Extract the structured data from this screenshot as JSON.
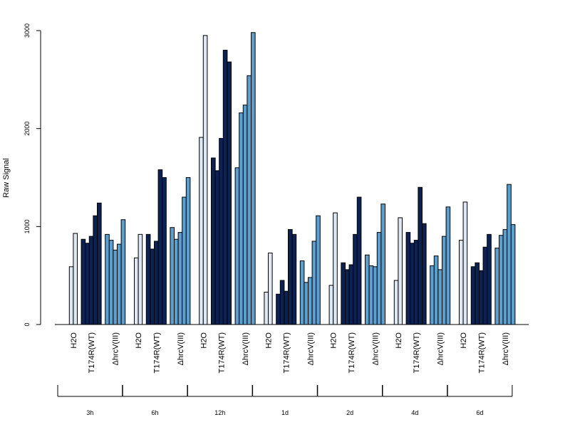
{
  "chart_data": {
    "type": "bar",
    "ylabel": "Raw Signal",
    "ylim": [
      0,
      3000
    ],
    "yticks": [
      0,
      1000,
      2000,
      3000
    ],
    "time_points": [
      "3h",
      "6h",
      "12h",
      "1d",
      "2d",
      "4d",
      "6d"
    ],
    "treatments": [
      "H2O",
      "T174R(WT)",
      "ΔhrcV(III)"
    ],
    "treatment_colors": [
      "#dde8f4",
      "#0b2255",
      "#5b9fcf"
    ],
    "values": [
      [
        [
          590,
          930
        ],
        [
          870,
          830,
          900,
          1110,
          1240
        ],
        [
          920,
          860,
          760,
          820,
          1070
        ]
      ],
      [
        [
          680,
          920
        ],
        [
          920,
          770,
          850,
          1580,
          1500
        ],
        [
          990,
          870,
          940,
          1300,
          1500
        ]
      ],
      [
        [
          1910,
          2950
        ],
        [
          1700,
          1570,
          1900,
          2800,
          2680
        ],
        [
          1600,
          2160,
          2240,
          2540,
          2980
        ]
      ],
      [
        [
          330,
          730
        ],
        [
          310,
          450,
          340,
          970,
          920
        ],
        [
          650,
          430,
          480,
          850,
          1110
        ]
      ],
      [
        [
          400,
          1140
        ],
        [
          630,
          560,
          610,
          920,
          1300
        ],
        [
          710,
          600,
          590,
          940,
          1230
        ]
      ],
      [
        [
          450,
          1090
        ],
        [
          940,
          830,
          860,
          1400,
          1030
        ],
        [
          600,
          700,
          560,
          900,
          1200
        ]
      ],
      [
        [
          860,
          1250
        ],
        [
          590,
          630,
          550,
          790,
          920
        ],
        [
          780,
          910,
          970,
          1430,
          1020
        ]
      ]
    ]
  }
}
